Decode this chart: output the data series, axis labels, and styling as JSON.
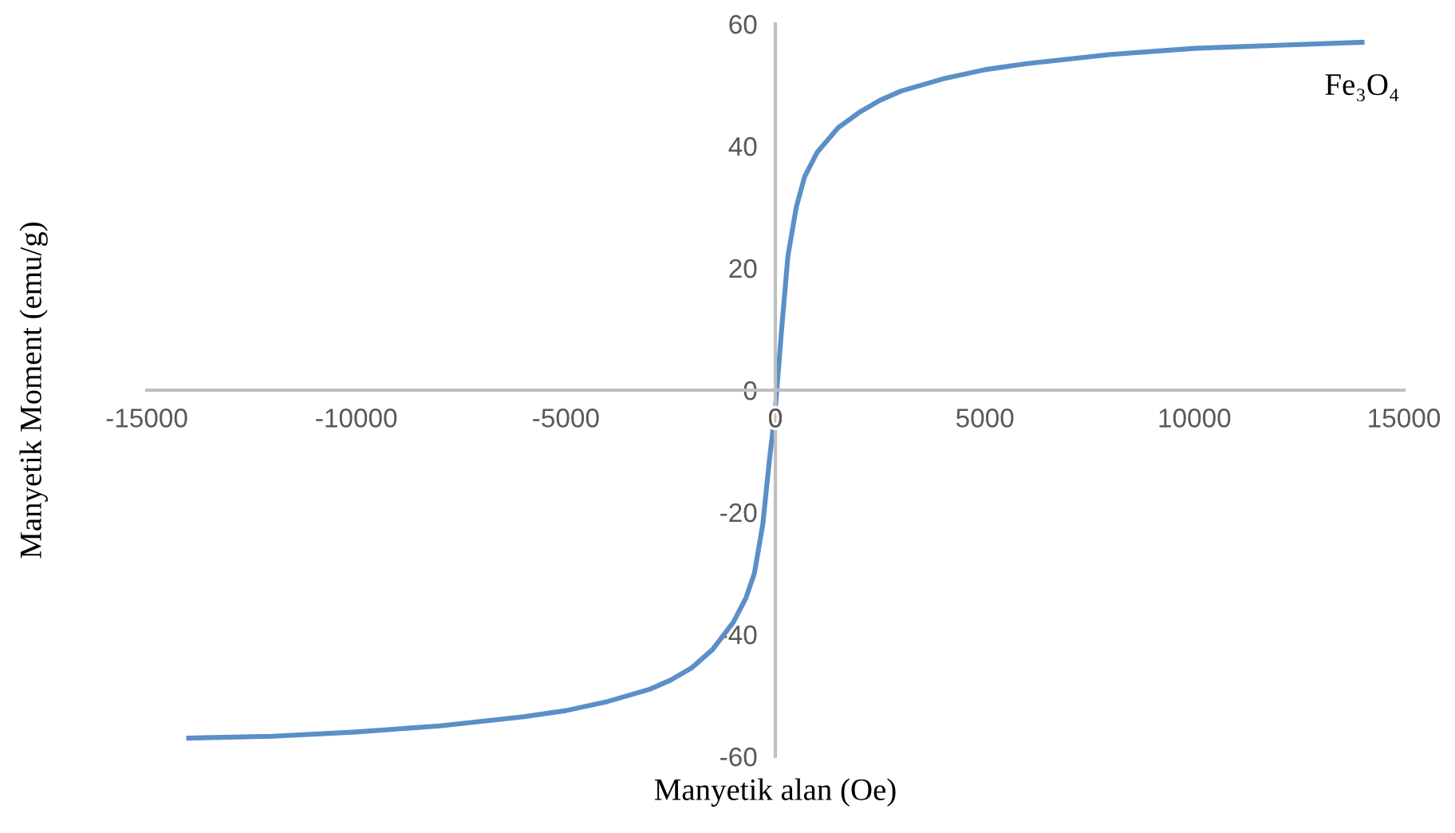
{
  "chart_data": {
    "type": "line",
    "xlabel": "Manyetik alan (Oe)",
    "ylabel": "Manyetik Moment (emu/g)",
    "xlim": [
      -15000,
      15000
    ],
    "xticks": [
      -15000,
      -10000,
      -5000,
      0,
      5000,
      10000,
      15000
    ],
    "ylim": [
      -60,
      60
    ],
    "yticks": [
      -60,
      -40,
      -20,
      0,
      20,
      40,
      60
    ],
    "grid": false,
    "legend": false,
    "series": [
      {
        "name": "Fe₃O₄",
        "color": "#5b8fc7",
        "x": [
          -14000,
          -12000,
          -10000,
          -8000,
          -6000,
          -5000,
          -4000,
          -3000,
          -2500,
          -2000,
          -1500,
          -1000,
          -700,
          -500,
          -300,
          -150,
          0,
          150,
          300,
          500,
          700,
          1000,
          1500,
          2000,
          2500,
          3000,
          4000,
          5000,
          6000,
          8000,
          10000,
          12000,
          14000
        ],
        "values": [
          -57,
          -56.7,
          -56,
          -55,
          -53.5,
          -52.5,
          -51,
          -49,
          -47.5,
          -45.5,
          -42.5,
          -38,
          -34,
          -30,
          -22,
          -12,
          -3,
          10,
          22,
          30,
          35,
          39,
          43,
          45.5,
          47.5,
          49,
          51,
          52.5,
          53.5,
          55,
          56,
          56.5,
          57
        ]
      }
    ]
  }
}
